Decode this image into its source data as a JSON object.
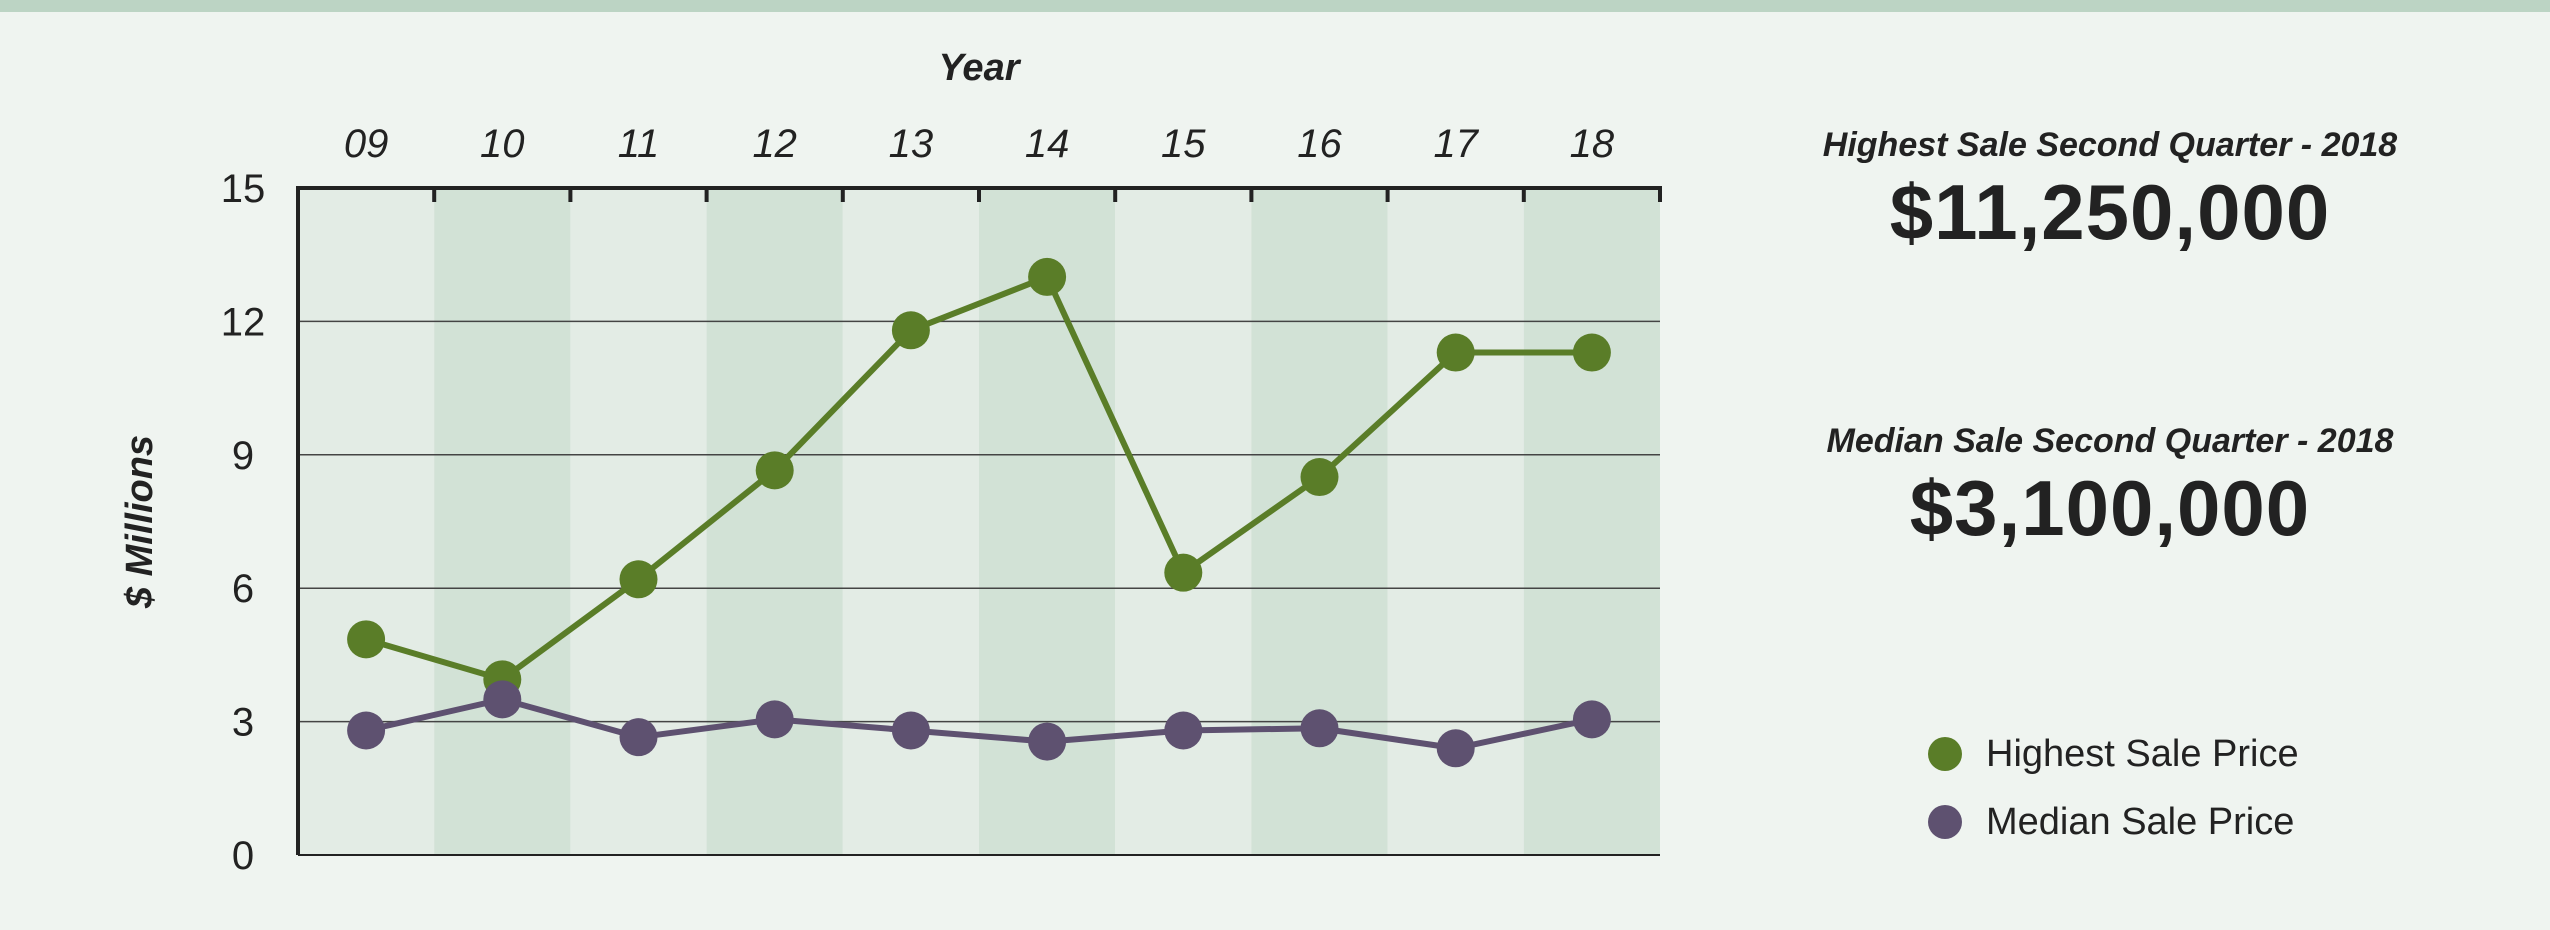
{
  "colors": {
    "highest": "#5a7d28",
    "median": "#5e5170",
    "band_light": "#e3ece5",
    "band_dark": "#d2e2d6"
  },
  "stats": {
    "highest_label": "Highest Sale Second Quarter - 2018",
    "highest_value": "$11,250,000",
    "median_label": "Median Sale Second Quarter - 2018",
    "median_value": "$3,100,000"
  },
  "chart_data": {
    "type": "line",
    "xlabel": "Year",
    "ylabel": "$ Millions",
    "categories": [
      "09",
      "10",
      "11",
      "12",
      "13",
      "14",
      "15",
      "16",
      "17",
      "18"
    ],
    "ylim": [
      0,
      15
    ],
    "yticks": [
      0,
      3,
      6,
      9,
      12,
      15
    ],
    "grid": true,
    "legend_position": "bottom-right",
    "series": [
      {
        "name": "Highest Sale Price",
        "color": "#5a7d28",
        "values": [
          4.85,
          3.95,
          6.2,
          8.65,
          11.8,
          13.0,
          6.35,
          8.5,
          11.3,
          11.3
        ]
      },
      {
        "name": "Median Sale Price",
        "color": "#5e5170",
        "values": [
          2.8,
          3.5,
          2.65,
          3.05,
          2.8,
          2.55,
          2.8,
          2.85,
          2.4,
          3.05
        ]
      }
    ]
  }
}
